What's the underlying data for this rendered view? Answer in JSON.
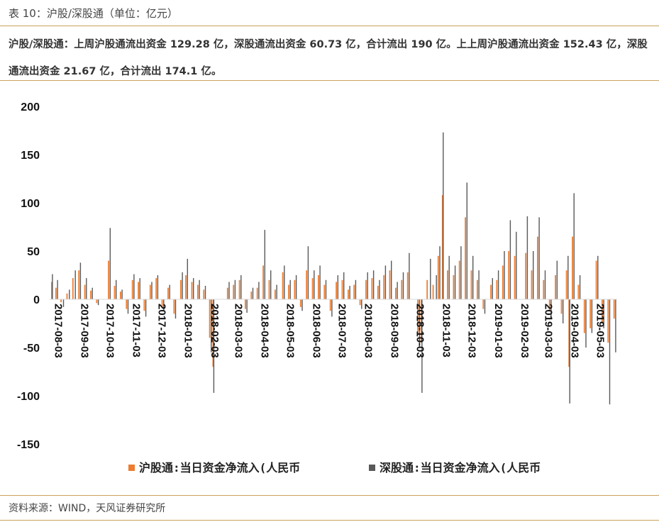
{
  "header": {
    "title": "表 10：沪股/深股通（单位：亿元）"
  },
  "summary": "沪股/深股通：上周沪股通流出资金 129.28 亿，深股通流出资金 60.73 亿，合计流出 190 亿。上上周沪股通流出资金 152.43 亿，深股通流出资金 21.67 亿，合计流出 174.1 亿。",
  "footer": {
    "source": "资料来源：WIND，天风证券研究所"
  },
  "colors": {
    "sh": "#ed7d31",
    "sz": "#595959",
    "rule": "#c9a15a"
  },
  "chart_data": {
    "type": "bar",
    "ylim": [
      -150,
      200
    ],
    "yticks": [
      200,
      150,
      100,
      50,
      0,
      -50,
      -100,
      -150
    ],
    "x_start": "2017-08-01",
    "x_end": "2019-05-31",
    "x_tick_labels": [
      "2017-08-03",
      "2017-09-03",
      "2017-10-03",
      "2017-11-03",
      "2017-12-03",
      "2018-01-03",
      "2018-02-03",
      "2018-03-03",
      "2018-04-03",
      "2018-05-03",
      "2018-06-03",
      "2018-07-03",
      "2018-08-03",
      "2018-09-03",
      "2018-10-03",
      "2018-11-03",
      "2018-12-03",
      "2019-01-03",
      "2019-02-03",
      "2019-03-03",
      "2019-04-03",
      "2019-05-03"
    ],
    "legend_position": "bottom",
    "series": [
      {
        "name": "沪股通:当日资金净流入(人民币",
        "color": "#ed7d31",
        "points": [
          [
            "2017-08-03",
            18
          ],
          [
            "2017-08-08",
            12
          ],
          [
            "2017-08-14",
            -3
          ],
          [
            "2017-08-21",
            6
          ],
          [
            "2017-08-28",
            22
          ],
          [
            "2017-09-04",
            30
          ],
          [
            "2017-09-11",
            15
          ],
          [
            "2017-09-18",
            9
          ],
          [
            "2017-09-25",
            -4
          ],
          [
            "2017-10-09",
            40
          ],
          [
            "2017-10-16",
            14
          ],
          [
            "2017-10-23",
            8
          ],
          [
            "2017-10-30",
            -10
          ],
          [
            "2017-11-06",
            20
          ],
          [
            "2017-11-13",
            18
          ],
          [
            "2017-11-20",
            -12
          ],
          [
            "2017-11-27",
            15
          ],
          [
            "2017-12-04",
            22
          ],
          [
            "2017-12-11",
            -8
          ],
          [
            "2017-12-18",
            12
          ],
          [
            "2017-12-25",
            -15
          ],
          [
            "2018-01-02",
            20
          ],
          [
            "2018-01-08",
            25
          ],
          [
            "2018-01-15",
            18
          ],
          [
            "2018-01-22",
            15
          ],
          [
            "2018-01-29",
            10
          ],
          [
            "2018-02-05",
            -40
          ],
          [
            "2018-02-09",
            -70
          ],
          [
            "2018-02-26",
            12
          ],
          [
            "2018-03-05",
            15
          ],
          [
            "2018-03-12",
            20
          ],
          [
            "2018-03-19",
            -10
          ],
          [
            "2018-03-26",
            8
          ],
          [
            "2018-04-02",
            12
          ],
          [
            "2018-04-09",
            35
          ],
          [
            "2018-04-16",
            20
          ],
          [
            "2018-04-23",
            10
          ],
          [
            "2018-05-02",
            28
          ],
          [
            "2018-05-09",
            15
          ],
          [
            "2018-05-16",
            20
          ],
          [
            "2018-05-23",
            -8
          ],
          [
            "2018-05-30",
            30
          ],
          [
            "2018-06-06",
            22
          ],
          [
            "2018-06-13",
            25
          ],
          [
            "2018-06-20",
            15
          ],
          [
            "2018-06-27",
            -12
          ],
          [
            "2018-07-04",
            18
          ],
          [
            "2018-07-11",
            20
          ],
          [
            "2018-07-18",
            10
          ],
          [
            "2018-07-25",
            15
          ],
          [
            "2018-08-01",
            -6
          ],
          [
            "2018-08-08",
            20
          ],
          [
            "2018-08-15",
            22
          ],
          [
            "2018-08-22",
            14
          ],
          [
            "2018-08-29",
            25
          ],
          [
            "2018-09-05",
            30
          ],
          [
            "2018-09-12",
            12
          ],
          [
            "2018-09-19",
            20
          ],
          [
            "2018-09-26",
            28
          ],
          [
            "2018-10-08",
            -35
          ],
          [
            "2018-10-12",
            -45
          ],
          [
            "2018-10-19",
            20
          ],
          [
            "2018-10-26",
            15
          ],
          [
            "2018-11-01",
            45
          ],
          [
            "2018-11-06",
            108
          ],
          [
            "2018-11-12",
            30
          ],
          [
            "2018-11-19",
            25
          ],
          [
            "2018-11-26",
            40
          ],
          [
            "2018-12-03",
            85
          ],
          [
            "2018-12-10",
            30
          ],
          [
            "2018-12-17",
            20
          ],
          [
            "2018-12-24",
            -10
          ],
          [
            "2019-01-02",
            15
          ],
          [
            "2019-01-09",
            20
          ],
          [
            "2019-01-16",
            35
          ],
          [
            "2019-01-23",
            50
          ],
          [
            "2019-01-30",
            45
          ],
          [
            "2019-02-12",
            48
          ],
          [
            "2019-02-19",
            30
          ],
          [
            "2019-02-26",
            65
          ],
          [
            "2019-03-05",
            20
          ],
          [
            "2019-03-12",
            -12
          ],
          [
            "2019-03-19",
            25
          ],
          [
            "2019-03-26",
            -15
          ],
          [
            "2019-04-01",
            30
          ],
          [
            "2019-04-04",
            -70
          ],
          [
            "2019-04-08",
            65
          ],
          [
            "2019-04-15",
            15
          ],
          [
            "2019-04-22",
            -35
          ],
          [
            "2019-04-29",
            -30
          ],
          [
            "2019-05-06",
            40
          ],
          [
            "2019-05-13",
            -25
          ],
          [
            "2019-05-20",
            -45
          ],
          [
            "2019-05-27",
            -20
          ]
        ]
      },
      {
        "name": "深股通:当日资金净流入(人民币",
        "color": "#595959",
        "points": [
          [
            "2017-08-03",
            26
          ],
          [
            "2017-08-09",
            20
          ],
          [
            "2017-08-16",
            -8
          ],
          [
            "2017-08-23",
            10
          ],
          [
            "2017-08-30",
            30
          ],
          [
            "2017-09-05",
            38
          ],
          [
            "2017-09-12",
            22
          ],
          [
            "2017-09-19",
            12
          ],
          [
            "2017-09-26",
            -6
          ],
          [
            "2017-10-10",
            74
          ],
          [
            "2017-10-17",
            20
          ],
          [
            "2017-10-24",
            10
          ],
          [
            "2017-10-31",
            -15
          ],
          [
            "2017-11-07",
            26
          ],
          [
            "2017-11-14",
            22
          ],
          [
            "2017-11-21",
            -18
          ],
          [
            "2017-11-28",
            18
          ],
          [
            "2017-12-05",
            25
          ],
          [
            "2017-12-12",
            -12
          ],
          [
            "2017-12-19",
            15
          ],
          [
            "2017-12-26",
            -20
          ],
          [
            "2018-01-03",
            28
          ],
          [
            "2018-01-09",
            42
          ],
          [
            "2018-01-16",
            22
          ],
          [
            "2018-01-23",
            20
          ],
          [
            "2018-01-30",
            14
          ],
          [
            "2018-02-06",
            -55
          ],
          [
            "2018-02-09",
            -97
          ],
          [
            "2018-02-27",
            18
          ],
          [
            "2018-03-06",
            20
          ],
          [
            "2018-03-13",
            25
          ],
          [
            "2018-03-20",
            -14
          ],
          [
            "2018-03-27",
            12
          ],
          [
            "2018-04-03",
            18
          ],
          [
            "2018-04-10",
            72
          ],
          [
            "2018-04-17",
            30
          ],
          [
            "2018-04-24",
            15
          ],
          [
            "2018-05-03",
            35
          ],
          [
            "2018-05-10",
            20
          ],
          [
            "2018-05-17",
            25
          ],
          [
            "2018-05-24",
            -12
          ],
          [
            "2018-05-31",
            55
          ],
          [
            "2018-06-07",
            30
          ],
          [
            "2018-06-14",
            35
          ],
          [
            "2018-06-21",
            20
          ],
          [
            "2018-06-28",
            -18
          ],
          [
            "2018-07-05",
            25
          ],
          [
            "2018-07-12",
            28
          ],
          [
            "2018-07-19",
            14
          ],
          [
            "2018-07-26",
            20
          ],
          [
            "2018-08-02",
            -10
          ],
          [
            "2018-08-09",
            28
          ],
          [
            "2018-08-16",
            30
          ],
          [
            "2018-08-23",
            20
          ],
          [
            "2018-08-30",
            35
          ],
          [
            "2018-09-06",
            40
          ],
          [
            "2018-09-13",
            18
          ],
          [
            "2018-09-20",
            28
          ],
          [
            "2018-09-27",
            48
          ],
          [
            "2018-10-09",
            -50
          ],
          [
            "2018-10-12",
            -97
          ],
          [
            "2018-10-22",
            42
          ],
          [
            "2018-10-29",
            25
          ],
          [
            "2018-11-02",
            55
          ],
          [
            "2018-11-06",
            173
          ],
          [
            "2018-11-13",
            45
          ],
          [
            "2018-11-20",
            35
          ],
          [
            "2018-11-27",
            55
          ],
          [
            "2018-12-04",
            121
          ],
          [
            "2018-12-11",
            45
          ],
          [
            "2018-12-18",
            30
          ],
          [
            "2018-12-25",
            -15
          ],
          [
            "2019-01-03",
            22
          ],
          [
            "2019-01-10",
            30
          ],
          [
            "2019-01-17",
            50
          ],
          [
            "2019-01-24",
            82
          ],
          [
            "2019-01-31",
            70
          ],
          [
            "2019-02-13",
            86
          ],
          [
            "2019-02-20",
            50
          ],
          [
            "2019-02-27",
            85
          ],
          [
            "2019-03-06",
            30
          ],
          [
            "2019-03-13",
            -20
          ],
          [
            "2019-03-20",
            40
          ],
          [
            "2019-03-27",
            -25
          ],
          [
            "2019-04-02",
            45
          ],
          [
            "2019-04-04",
            -108
          ],
          [
            "2019-04-09",
            110
          ],
          [
            "2019-04-16",
            25
          ],
          [
            "2019-04-23",
            -50
          ],
          [
            "2019-04-30",
            -35
          ],
          [
            "2019-05-07",
            45
          ],
          [
            "2019-05-14",
            -30
          ],
          [
            "2019-05-21",
            -109
          ],
          [
            "2019-05-28",
            -55
          ]
        ]
      }
    ]
  }
}
